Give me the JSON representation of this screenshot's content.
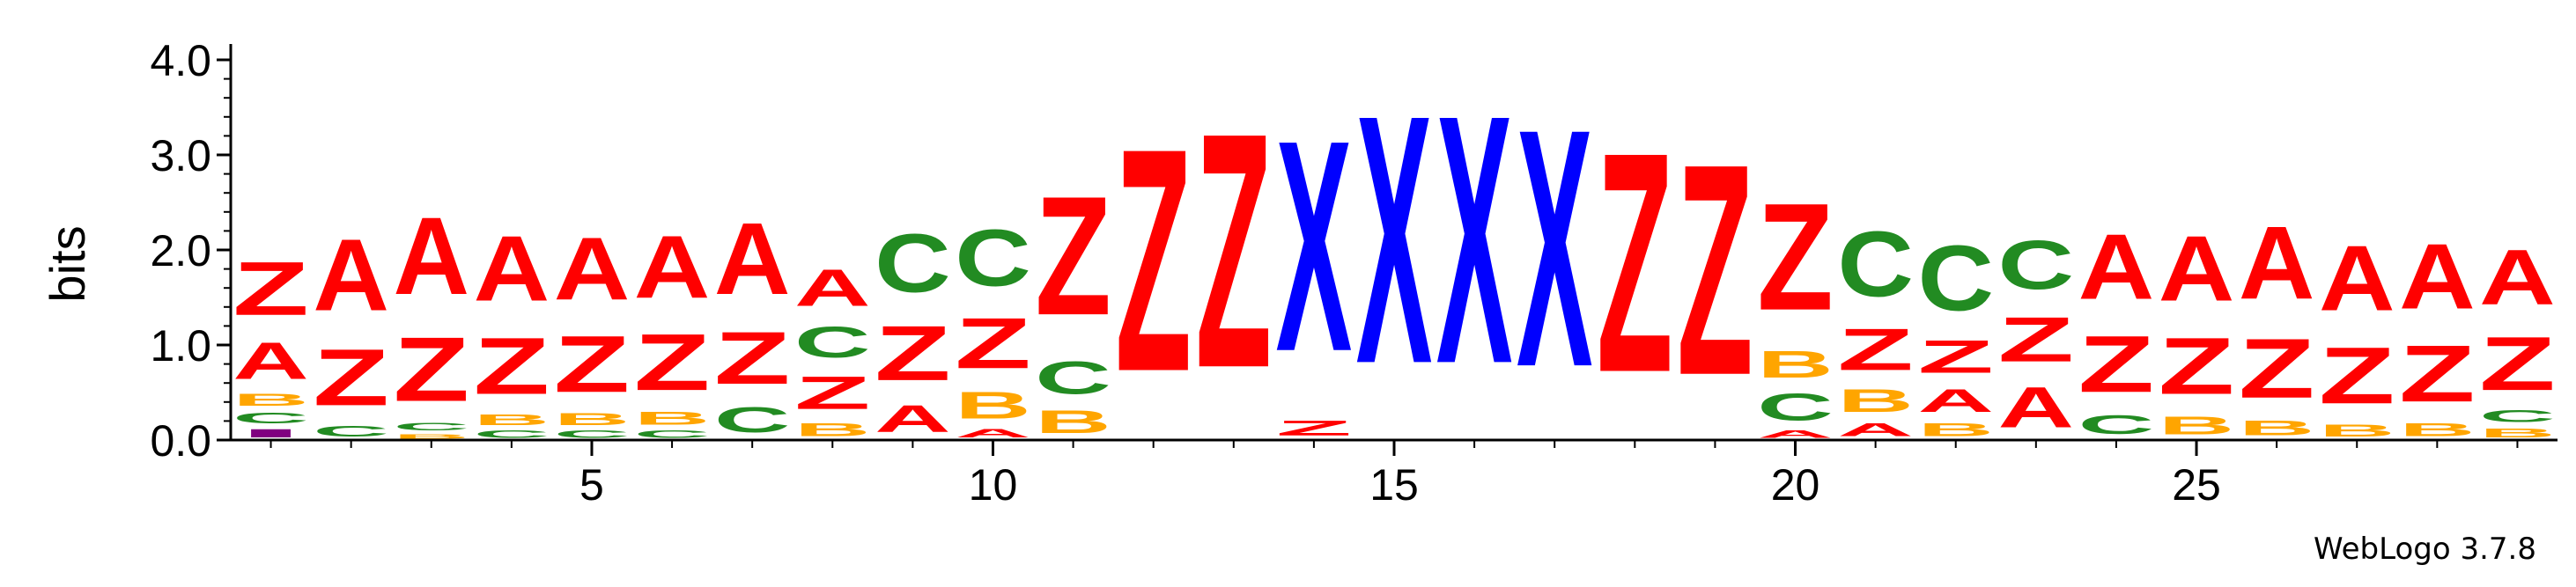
{
  "chart_data": {
    "type": "sequence-logo",
    "ylabel": "bits",
    "ylim": [
      0,
      4.0
    ],
    "yticks": [
      "0.0",
      "1.0",
      "2.0",
      "3.0",
      "4.0"
    ],
    "xticks": [
      5,
      10,
      15,
      20,
      25
    ],
    "positions": [
      1,
      29
    ],
    "colors": {
      "A": "#ff0000",
      "Z": "#ff0000",
      "B": "#ffa500",
      "C": "#228b22",
      "X": "#0000ff",
      "I": "#800080"
    },
    "columns": [
      {
        "pos": 1,
        "stack": [
          [
            "I",
            0.14
          ],
          [
            "C",
            0.18
          ],
          [
            "B",
            0.2
          ],
          [
            "A",
            0.62
          ],
          [
            "Z",
            0.9
          ]
        ]
      },
      {
        "pos": 2,
        "stack": [
          [
            "C",
            0.18
          ],
          [
            "Z",
            0.95
          ],
          [
            "A",
            1.2
          ]
        ]
      },
      {
        "pos": 3,
        "stack": [
          [
            "B",
            0.08
          ],
          [
            "C",
            0.12
          ],
          [
            "Z",
            1.08
          ],
          [
            "A",
            1.3
          ]
        ]
      },
      {
        "pos": 4,
        "stack": [
          [
            "C",
            0.12
          ],
          [
            "B",
            0.18
          ],
          [
            "Z",
            0.95
          ],
          [
            "A",
            1.1
          ]
        ]
      },
      {
        "pos": 5,
        "stack": [
          [
            "C",
            0.12
          ],
          [
            "B",
            0.2
          ],
          [
            "Z",
            0.95
          ],
          [
            "A",
            1.05
          ]
        ]
      },
      {
        "pos": 6,
        "stack": [
          [
            "C",
            0.12
          ],
          [
            "B",
            0.22
          ],
          [
            "Z",
            0.95
          ],
          [
            "A",
            1.05
          ]
        ]
      },
      {
        "pos": 7,
        "stack": [
          [
            "C",
            0.42
          ],
          [
            "Z",
            0.88
          ],
          [
            "A",
            1.2
          ]
        ]
      },
      {
        "pos": 8,
        "stack": [
          [
            "B",
            0.22
          ],
          [
            "Z",
            0.55
          ],
          [
            "C",
            0.52
          ],
          [
            "A",
            0.62
          ]
        ]
      },
      {
        "pos": 9,
        "stack": [
          [
            "A",
            0.45
          ],
          [
            "Z",
            0.92
          ],
          [
            "C",
            0.98
          ]
        ]
      },
      {
        "pos": 10,
        "stack": [
          [
            "A",
            0.14
          ],
          [
            "B",
            0.45
          ],
          [
            "Z",
            0.85
          ],
          [
            "C",
            0.95
          ]
        ]
      },
      {
        "pos": 11,
        "stack": [
          [
            "B",
            0.38
          ],
          [
            "C",
            0.55
          ],
          [
            "Z",
            2.0
          ]
        ]
      },
      {
        "pos": 12,
        "stack": [
          [
            "Z",
            3.75
          ]
        ]
      },
      {
        "pos": 13,
        "stack": [
          [
            "Z",
            3.95
          ]
        ]
      },
      {
        "pos": 14,
        "stack": [
          [
            "Z",
            0.25
          ],
          [
            "X",
            3.55
          ]
        ]
      },
      {
        "pos": 15,
        "stack": [
          [
            "X",
            4.18
          ]
        ]
      },
      {
        "pos": 16,
        "stack": [
          [
            "X",
            4.18
          ]
        ]
      },
      {
        "pos": 17,
        "stack": [
          [
            "X",
            4.0
          ]
        ]
      },
      {
        "pos": 18,
        "stack": [
          [
            "Z",
            3.7
          ]
        ]
      },
      {
        "pos": 19,
        "stack": [
          [
            "Z",
            3.55
          ]
        ]
      },
      {
        "pos": 20,
        "stack": [
          [
            "A",
            0.12
          ],
          [
            "C",
            0.45
          ],
          [
            "B",
            0.45
          ],
          [
            "Z",
            1.8
          ]
        ]
      },
      {
        "pos": 21,
        "stack": [
          [
            "A",
            0.22
          ],
          [
            "B",
            0.38
          ],
          [
            "Z",
            0.7
          ],
          [
            "C",
            1.1
          ]
        ]
      },
      {
        "pos": 22,
        "stack": [
          [
            "B",
            0.22
          ],
          [
            "A",
            0.38
          ],
          [
            "Z",
            0.55
          ],
          [
            "C",
            1.1
          ]
        ]
      },
      {
        "pos": 23,
        "stack": [
          [
            "A",
            0.68
          ],
          [
            "Z",
            0.75
          ],
          [
            "C",
            0.82
          ]
        ]
      },
      {
        "pos": 24,
        "stack": [
          [
            "C",
            0.32
          ],
          [
            "Z",
            0.95
          ],
          [
            "A",
            1.1
          ]
        ]
      },
      {
        "pos": 25,
        "stack": [
          [
            "B",
            0.3
          ],
          [
            "Z",
            0.95
          ],
          [
            "A",
            1.1
          ]
        ]
      },
      {
        "pos": 26,
        "stack": [
          [
            "B",
            0.25
          ],
          [
            "Z",
            1.0
          ],
          [
            "A",
            1.22
          ]
        ]
      },
      {
        "pos": 27,
        "stack": [
          [
            "B",
            0.2
          ],
          [
            "Z",
            0.95
          ],
          [
            "A",
            1.1
          ]
        ]
      },
      {
        "pos": 28,
        "stack": [
          [
            "B",
            0.22
          ],
          [
            "Z",
            0.95
          ],
          [
            "A",
            1.1
          ]
        ]
      },
      {
        "pos": 29,
        "stack": [
          [
            "B",
            0.15
          ],
          [
            "C",
            0.2
          ],
          [
            "Z",
            0.9
          ],
          [
            "A",
            0.92
          ]
        ]
      }
    ]
  },
  "credit": "WebLogo 3.7.8"
}
